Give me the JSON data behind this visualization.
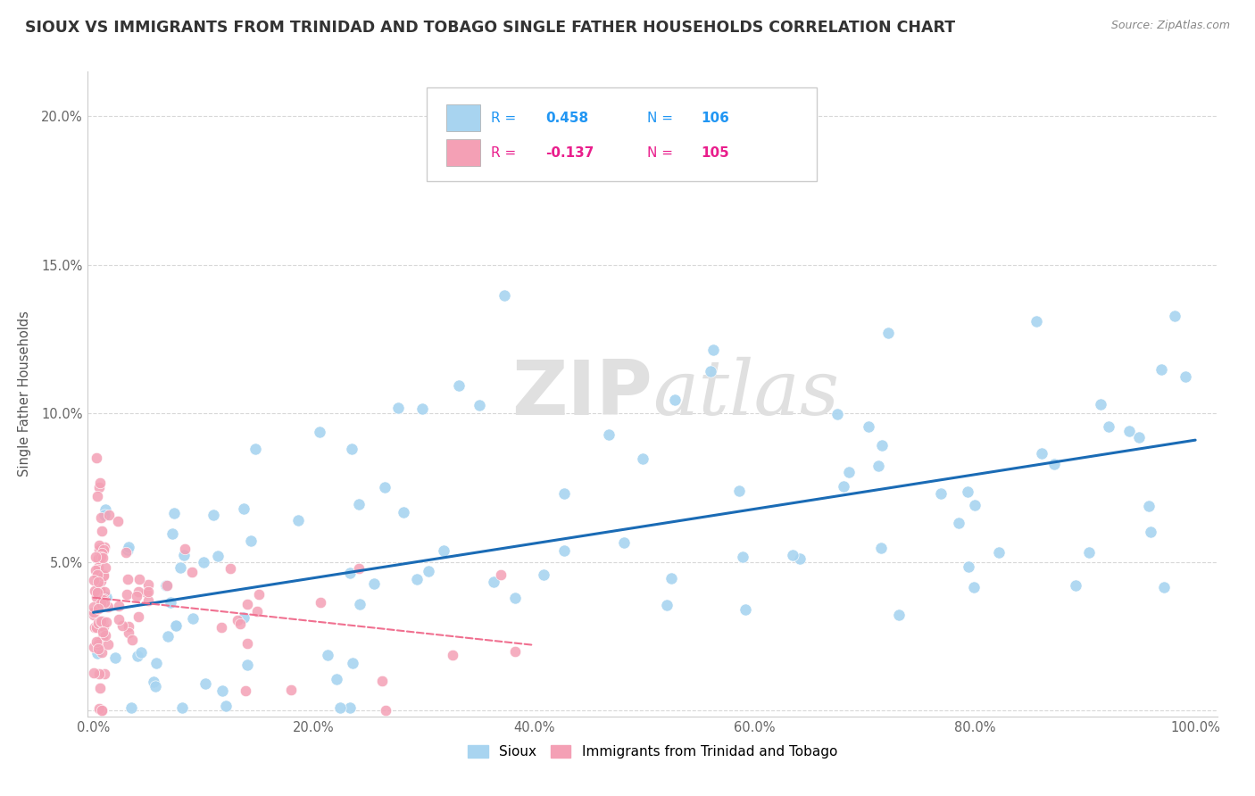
{
  "title": "SIOUX VS IMMIGRANTS FROM TRINIDAD AND TOBAGO SINGLE FATHER HOUSEHOLDS CORRELATION CHART",
  "source": "Source: ZipAtlas.com",
  "ylabel": "Single Father Households",
  "xlim": [
    -0.005,
    1.02
  ],
  "ylim": [
    -0.002,
    0.215
  ],
  "xticks": [
    0.0,
    0.2,
    0.4,
    0.6,
    0.8,
    1.0
  ],
  "xtick_labels": [
    "0.0%",
    "20.0%",
    "40.0%",
    "60.0%",
    "80.0%",
    "100.0%"
  ],
  "yticks": [
    0.0,
    0.05,
    0.1,
    0.15,
    0.2
  ],
  "ytick_labels": [
    "",
    "5.0%",
    "10.0%",
    "15.0%",
    "20.0%"
  ],
  "R_sioux": 0.458,
  "N_sioux": 106,
  "R_imm": -0.137,
  "N_imm": 105,
  "sioux_color": "#a8d4f0",
  "imm_color": "#f4a0b5",
  "trend_sioux_color": "#1a6bb5",
  "trend_imm_color": "#f07090",
  "background_color": "#ffffff",
  "grid_color": "#d8d8d8",
  "watermark": "ZIPAtlas",
  "sioux_trend_x0": 0.0,
  "sioux_trend_y0": 0.033,
  "sioux_trend_x1": 1.0,
  "sioux_trend_y1": 0.091,
  "imm_trend_x0": 0.0,
  "imm_trend_y0": 0.038,
  "imm_trend_x1": 0.4,
  "imm_trend_y1": 0.022
}
